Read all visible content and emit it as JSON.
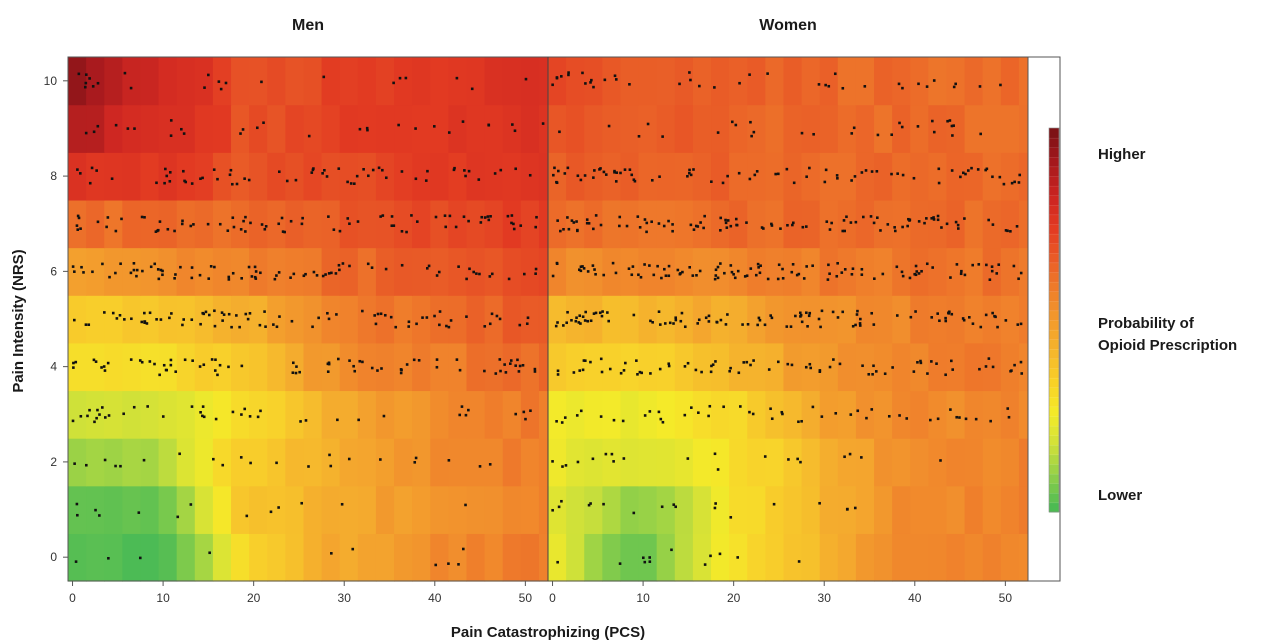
{
  "chart_data": {
    "type": "heatmap",
    "panels": [
      {
        "name": "Men",
        "x_ticks": [
          0,
          10,
          20,
          30,
          40,
          50
        ],
        "row_gradients": [
          {
            "y": 0,
            "stops": [
              [
                0,
                80
              ],
              [
                10,
                70
              ],
              [
                20,
                170
              ],
              [
                30,
                185
              ],
              [
                40,
                195
              ],
              [
                52,
                200
              ]
            ]
          },
          {
            "y": 1,
            "stops": [
              [
                0,
                85
              ],
              [
                10,
                85
              ],
              [
                18,
                170
              ],
              [
                30,
                185
              ],
              [
                40,
                190
              ],
              [
                52,
                198
              ]
            ]
          },
          {
            "y": 2,
            "stops": [
              [
                0,
                118
              ],
              [
                10,
                122
              ],
              [
                18,
                170
              ],
              [
                30,
                185
              ],
              [
                40,
                195
              ],
              [
                52,
                200
              ]
            ]
          },
          {
            "y": 3,
            "stops": [
              [
                0,
                135
              ],
              [
                10,
                138
              ],
              [
                18,
                160
              ],
              [
                30,
                185
              ],
              [
                40,
                195
              ],
              [
                52,
                202
              ]
            ]
          },
          {
            "y": 4,
            "stops": [
              [
                0,
                160
              ],
              [
                10,
                162
              ],
              [
                20,
                175
              ],
              [
                30,
                195
              ],
              [
                40,
                200
              ],
              [
                52,
                205
              ]
            ]
          },
          {
            "y": 5,
            "stops": [
              [
                0,
                172
              ],
              [
                10,
                172
              ],
              [
                20,
                182
              ],
              [
                30,
                198
              ],
              [
                40,
                205
              ],
              [
                52,
                210
              ]
            ]
          },
          {
            "y": 6,
            "stops": [
              [
                0,
                190
              ],
              [
                10,
                195
              ],
              [
                20,
                198
              ],
              [
                30,
                205
              ],
              [
                40,
                210
              ],
              [
                52,
                215
              ]
            ]
          },
          {
            "y": 7,
            "stops": [
              [
                0,
                205
              ],
              [
                10,
                205
              ],
              [
                20,
                205
              ],
              [
                30,
                210
              ],
              [
                40,
                215
              ],
              [
                52,
                220
              ]
            ]
          },
          {
            "y": 8,
            "stops": [
              [
                0,
                225
              ],
              [
                10,
                222
              ],
              [
                20,
                212
              ],
              [
                30,
                215
              ],
              [
                40,
                220
              ],
              [
                52,
                225
              ]
            ]
          },
          {
            "y": 9,
            "stops": [
              [
                0,
                250
              ],
              [
                6,
                235
              ],
              [
                14,
                225
              ],
              [
                20,
                212
              ],
              [
                30,
                218
              ],
              [
                52,
                228
              ]
            ]
          },
          {
            "y": 10,
            "stops": [
              [
                0,
                260
              ],
              [
                6,
                240
              ],
              [
                14,
                228
              ],
              [
                20,
                212
              ],
              [
                30,
                218
              ],
              [
                52,
                228
              ]
            ]
          }
        ],
        "points_per_row": [
          10,
          13,
          22,
          40,
          75,
          80,
          80,
          78,
          60,
          28,
          22
        ]
      },
      {
        "name": "Women",
        "x_ticks": [
          0,
          10,
          20,
          30,
          40,
          50
        ],
        "row_gradients": [
          {
            "y": 0,
            "stops": [
              [
                0,
                155
              ],
              [
                10,
                85
              ],
              [
                15,
                130
              ],
              [
                20,
                160
              ],
              [
                30,
                180
              ],
              [
                38,
                195
              ],
              [
                52,
                198
              ]
            ]
          },
          {
            "y": 1,
            "stops": [
              [
                0,
                150
              ],
              [
                10,
                110
              ],
              [
                15,
                130
              ],
              [
                20,
                160
              ],
              [
                30,
                180
              ],
              [
                38,
                195
              ],
              [
                52,
                198
              ]
            ]
          },
          {
            "y": 2,
            "stops": [
              [
                0,
                150
              ],
              [
                10,
                140
              ],
              [
                20,
                160
              ],
              [
                30,
                180
              ],
              [
                38,
                195
              ],
              [
                52,
                198
              ]
            ]
          },
          {
            "y": 3,
            "stops": [
              [
                0,
                155
              ],
              [
                10,
                150
              ],
              [
                20,
                165
              ],
              [
                30,
                185
              ],
              [
                38,
                195
              ],
              [
                52,
                198
              ]
            ]
          },
          {
            "y": 4,
            "stops": [
              [
                0,
                170
              ],
              [
                10,
                168
              ],
              [
                20,
                180
              ],
              [
                30,
                190
              ],
              [
                40,
                198
              ],
              [
                52,
                200
              ]
            ]
          },
          {
            "y": 5,
            "stops": [
              [
                0,
                180
              ],
              [
                10,
                180
              ],
              [
                20,
                185
              ],
              [
                30,
                192
              ],
              [
                40,
                198
              ],
              [
                52,
                200
              ]
            ]
          },
          {
            "y": 6,
            "stops": [
              [
                0,
                195
              ],
              [
                10,
                195
              ],
              [
                20,
                198
              ],
              [
                30,
                200
              ],
              [
                40,
                202
              ],
              [
                52,
                203
              ]
            ]
          },
          {
            "y": 7,
            "stops": [
              [
                0,
                203
              ],
              [
                10,
                203
              ],
              [
                20,
                205
              ],
              [
                30,
                205
              ],
              [
                40,
                205
              ],
              [
                52,
                206
              ]
            ]
          },
          {
            "y": 8,
            "stops": [
              [
                0,
                210
              ],
              [
                10,
                208
              ],
              [
                20,
                208
              ],
              [
                30,
                206
              ],
              [
                40,
                205
              ],
              [
                52,
                205
              ]
            ]
          },
          {
            "y": 9,
            "stops": [
              [
                0,
                212
              ],
              [
                10,
                210
              ],
              [
                20,
                208
              ],
              [
                30,
                206
              ],
              [
                40,
                205
              ],
              [
                52,
                205
              ]
            ]
          },
          {
            "y": 10,
            "stops": [
              [
                0,
                214
              ],
              [
                10,
                212
              ],
              [
                20,
                208
              ],
              [
                30,
                206
              ],
              [
                40,
                205
              ],
              [
                52,
                205
              ]
            ]
          }
        ],
        "points_per_row": [
          12,
          18,
          20,
          48,
          75,
          105,
          110,
          100,
          78,
          28,
          38
        ]
      }
    ],
    "y_ticks": [
      0,
      2,
      4,
      6,
      8,
      10
    ],
    "xlim": [
      -0.5,
      52.5
    ],
    "ylim": [
      -0.5,
      10.5
    ],
    "xlabel": "Pain Catastrophizing (PCS)",
    "ylabel": "Pain Intensity (NRS)",
    "colorbar": {
      "top_label": "Higher",
      "middle_label": [
        "Probability of",
        "Opioid Prescription"
      ],
      "bottom_label": "Lower",
      "colors": [
        "#4dbb52",
        "#8fcf4a",
        "#cfe03a",
        "#f4ec28",
        "#f9d226",
        "#f6b62c",
        "#f39a2c",
        "#ef7d2a",
        "#ea5a27",
        "#e23a22",
        "#cc2421",
        "#a8191c",
        "#7e1216"
      ]
    }
  }
}
